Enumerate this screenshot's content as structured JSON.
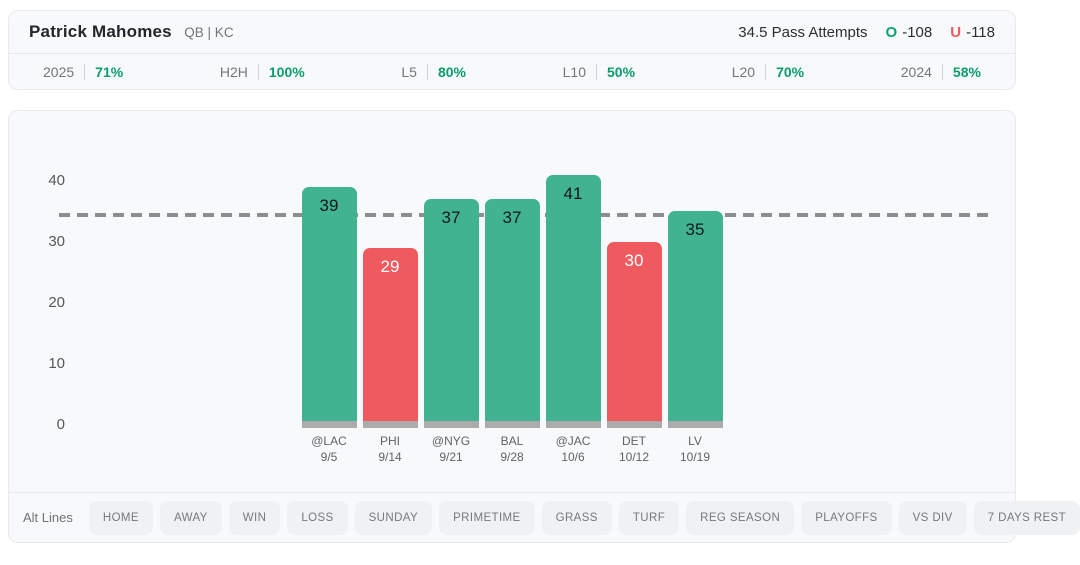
{
  "header": {
    "player": "Patrick Mahomes",
    "position": "QB | KC",
    "prop": "34.5 Pass Attempts",
    "over": {
      "label": "O",
      "odds": "-108"
    },
    "under": {
      "label": "U",
      "odds": "-118"
    }
  },
  "stats": [
    {
      "label": "2025",
      "value": "71%"
    },
    {
      "label": "H2H",
      "value": "100%"
    },
    {
      "label": "L5",
      "value": "80%"
    },
    {
      "label": "L10",
      "value": "50%"
    },
    {
      "label": "L20",
      "value": "70%"
    },
    {
      "label": "2024",
      "value": "58%"
    }
  ],
  "chart_data": {
    "type": "bar",
    "title": "",
    "categories": [
      "@LAC",
      "PHI",
      "@NYG",
      "BAL",
      "@JAC",
      "DET",
      "LV"
    ],
    "dates": [
      "9/5",
      "9/14",
      "9/21",
      "9/28",
      "10/6",
      "10/12",
      "10/19"
    ],
    "values": [
      39,
      29,
      37,
      37,
      41,
      30,
      35
    ],
    "threshold_line": 34.5,
    "yticks": [
      0,
      10,
      20,
      30,
      40
    ],
    "ylim": [
      0,
      44
    ],
    "grid": false,
    "colors": {
      "over": "#41b390",
      "under": "#ef5a5f",
      "base_strip": "#ababab",
      "line": "#8b8d90"
    }
  },
  "filters": {
    "alt_lines_label": "Alt Lines",
    "buttons": [
      "HOME",
      "AWAY",
      "WIN",
      "LOSS",
      "SUNDAY",
      "PRIMETIME",
      "GRASS",
      "TURF",
      "REG SEASON",
      "PLAYOFFS",
      "VS DIV",
      "7 DAYS REST"
    ]
  }
}
